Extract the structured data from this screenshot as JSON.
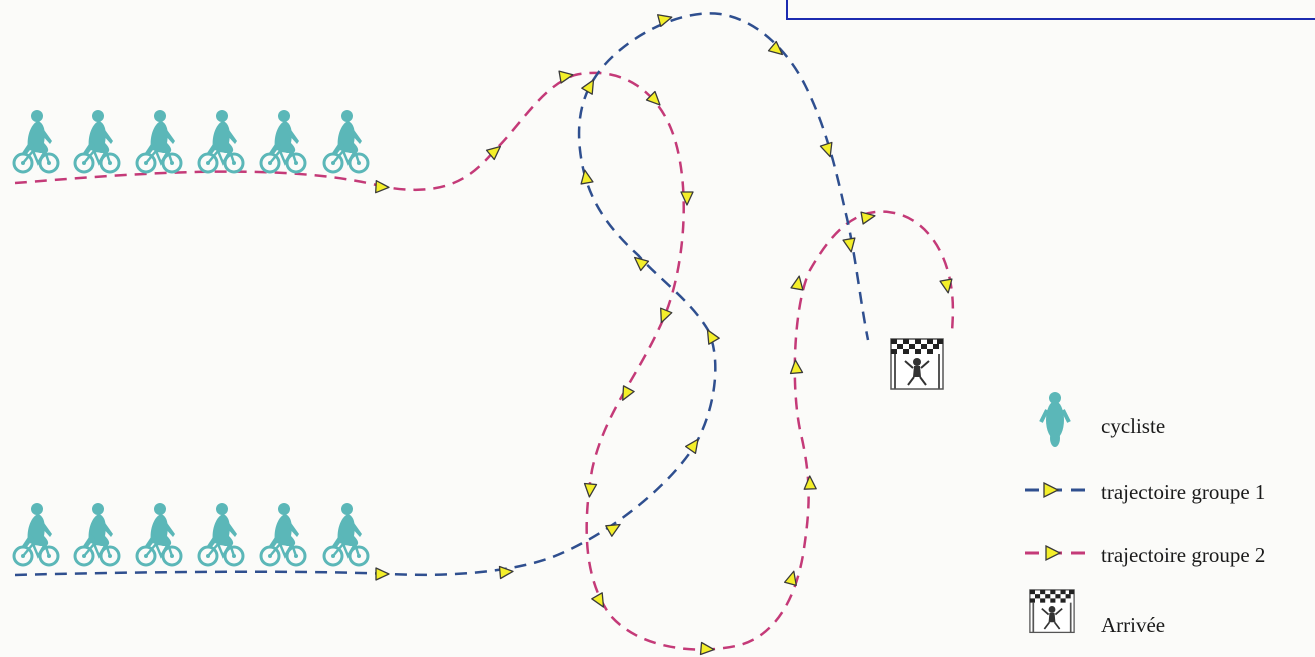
{
  "colors": {
    "group1": "#2f4f8f",
    "group2": "#c43a78",
    "arrow_fill": "#f4ef2a",
    "arrow_stroke": "#3a3a3a",
    "cyclist": "#5bb7b8",
    "frame": "#1c2bb0"
  },
  "groups": [
    {
      "id": "groupe-2",
      "start_row": "top",
      "cyclist_count": 6
    },
    {
      "id": "groupe-1",
      "start_row": "bottom",
      "cyclist_count": 6
    }
  ],
  "legend": {
    "cyclist_label": "cycliste",
    "group1_label": "trajectoire groupe 1",
    "group2_label": "trajectoire groupe 2",
    "finish_label": "Arrivée"
  },
  "icons": {
    "cyclist": "cyclist-icon",
    "finish": "finish-flag-icon",
    "direction": "arrow-right-icon"
  }
}
